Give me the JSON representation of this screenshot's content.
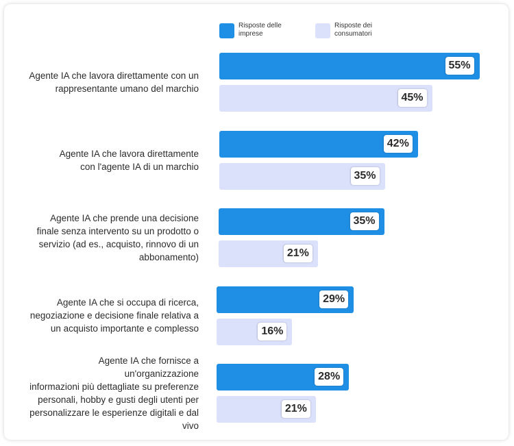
{
  "chart_data": {
    "type": "bar",
    "orientation": "horizontal",
    "categories": [
      "Agente IA che lavora direttamente con un rappresentante umano del marchio",
      "Agente IA che lavora direttamente con l'agente IA di un marchio",
      "Agente IA che prende una decisione finale senza intervento su un prodotto o servizio (ad es., acquisto, rinnovo di un abbonamento)",
      "Agente IA che si occupa di ricerca, negoziazione e decisione finale relativa a un acquisto importante e complesso",
      "Agente IA che fornisce a un'organizzazione informazioni più dettagliate su preferenze personali, hobby e gusti degli utenti per personalizzare le esperienze digitali e dal vivo"
    ],
    "category_lines": [
      [
        "Agente IA che lavora direttamente con un",
        "rappresentante umano del marchio"
      ],
      [
        "Agente IA che lavora direttamente",
        "con l'agente IA di un marchio"
      ],
      [
        "Agente IA che prende una decisione",
        "finale senza intervento su un prodotto o",
        "servizio (ad es., acquisto, rinnovo di un",
        "abbonamento)"
      ],
      [
        "Agente IA che si occupa di ricerca,",
        "negoziazione e decisione finale relativa a",
        "un acquisto importante e complesso"
      ],
      [
        "Agente IA che fornisce a un'organizzazione",
        "informazioni più dettagliate su preferenze",
        "personali, hobby e gusti degli utenti per",
        "personalizzare le esperienze digitali e dal vivo"
      ]
    ],
    "series": [
      {
        "name": "Risposte delle imprese",
        "color": "#1f8fe6",
        "values": [
          55,
          42,
          35,
          29,
          28
        ],
        "labels": [
          "55%",
          "42%",
          "35%",
          "29%",
          "28%"
        ]
      },
      {
        "name": "Risposte dei consumatori",
        "color": "#dbe0fb",
        "values": [
          45,
          35,
          21,
          16,
          21
        ],
        "labels": [
          "45%",
          "35%",
          "21%",
          "16%",
          "21%"
        ]
      }
    ],
    "unit": "%",
    "legend_position": "top"
  },
  "legend": [
    {
      "lines": [
        "Risposte delle",
        "imprese"
      ],
      "color": "#1f8fe6"
    },
    {
      "lines": [
        "Risposte dei",
        "consumatori"
      ],
      "color": "#dbe0fb"
    }
  ]
}
